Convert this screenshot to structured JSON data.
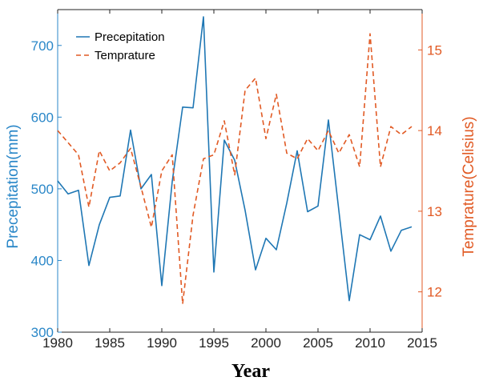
{
  "chart_data": {
    "type": "line",
    "title": "",
    "xlabel": "Year",
    "ylabel_left": "Precepitation(mm)",
    "ylabel_right": "Temprature(Celisius)",
    "xlim": [
      1980,
      2015
    ],
    "ylim_left": [
      300,
      750
    ],
    "ylim_right": [
      11.5,
      15.5
    ],
    "x_ticks": [
      1980,
      1985,
      1990,
      1995,
      2000,
      2005,
      2010,
      2015
    ],
    "y_ticks_left": [
      300,
      400,
      500,
      600,
      700
    ],
    "y_ticks_right": [
      12,
      13,
      14,
      15
    ],
    "grid": false,
    "legend_position": "top-left",
    "x": [
      1980,
      1981,
      1982,
      1983,
      1984,
      1985,
      1986,
      1987,
      1988,
      1989,
      1990,
      1991,
      1992,
      1993,
      1994,
      1995,
      1996,
      1997,
      1998,
      1999,
      2000,
      2001,
      2002,
      2003,
      2004,
      2005,
      2006,
      2007,
      2008,
      2009,
      2010,
      2011,
      2012,
      2013,
      2014
    ],
    "series": [
      {
        "name": "Precepitation",
        "axis": "left",
        "style": "solid",
        "color": "#1f77b4",
        "values": [
          511,
          493,
          498,
          393,
          450,
          488,
          490,
          582,
          500,
          520,
          365,
          510,
          614,
          613,
          740,
          384,
          568,
          540,
          470,
          387,
          431,
          415,
          480,
          553,
          468,
          476,
          596,
          470,
          344,
          436,
          429,
          462,
          413,
          442,
          447
        ]
      },
      {
        "name": "Temprature",
        "axis": "right",
        "style": "dashed",
        "color": "#e15a24",
        "values": [
          14.0,
          13.85,
          13.7,
          13.05,
          13.75,
          13.5,
          13.6,
          13.78,
          13.3,
          12.8,
          13.5,
          13.7,
          11.85,
          12.95,
          13.65,
          13.7,
          14.12,
          13.45,
          14.5,
          14.65,
          13.9,
          14.45,
          13.72,
          13.65,
          13.9,
          13.75,
          14.0,
          13.72,
          13.95,
          13.55,
          15.2,
          13.55,
          14.05,
          13.95,
          14.05
        ]
      }
    ]
  },
  "colors": {
    "left_axis": "#2a87c8",
    "right_axis": "#e15a24",
    "precip_line": "#1f77b4",
    "temp_line": "#e15a24"
  }
}
